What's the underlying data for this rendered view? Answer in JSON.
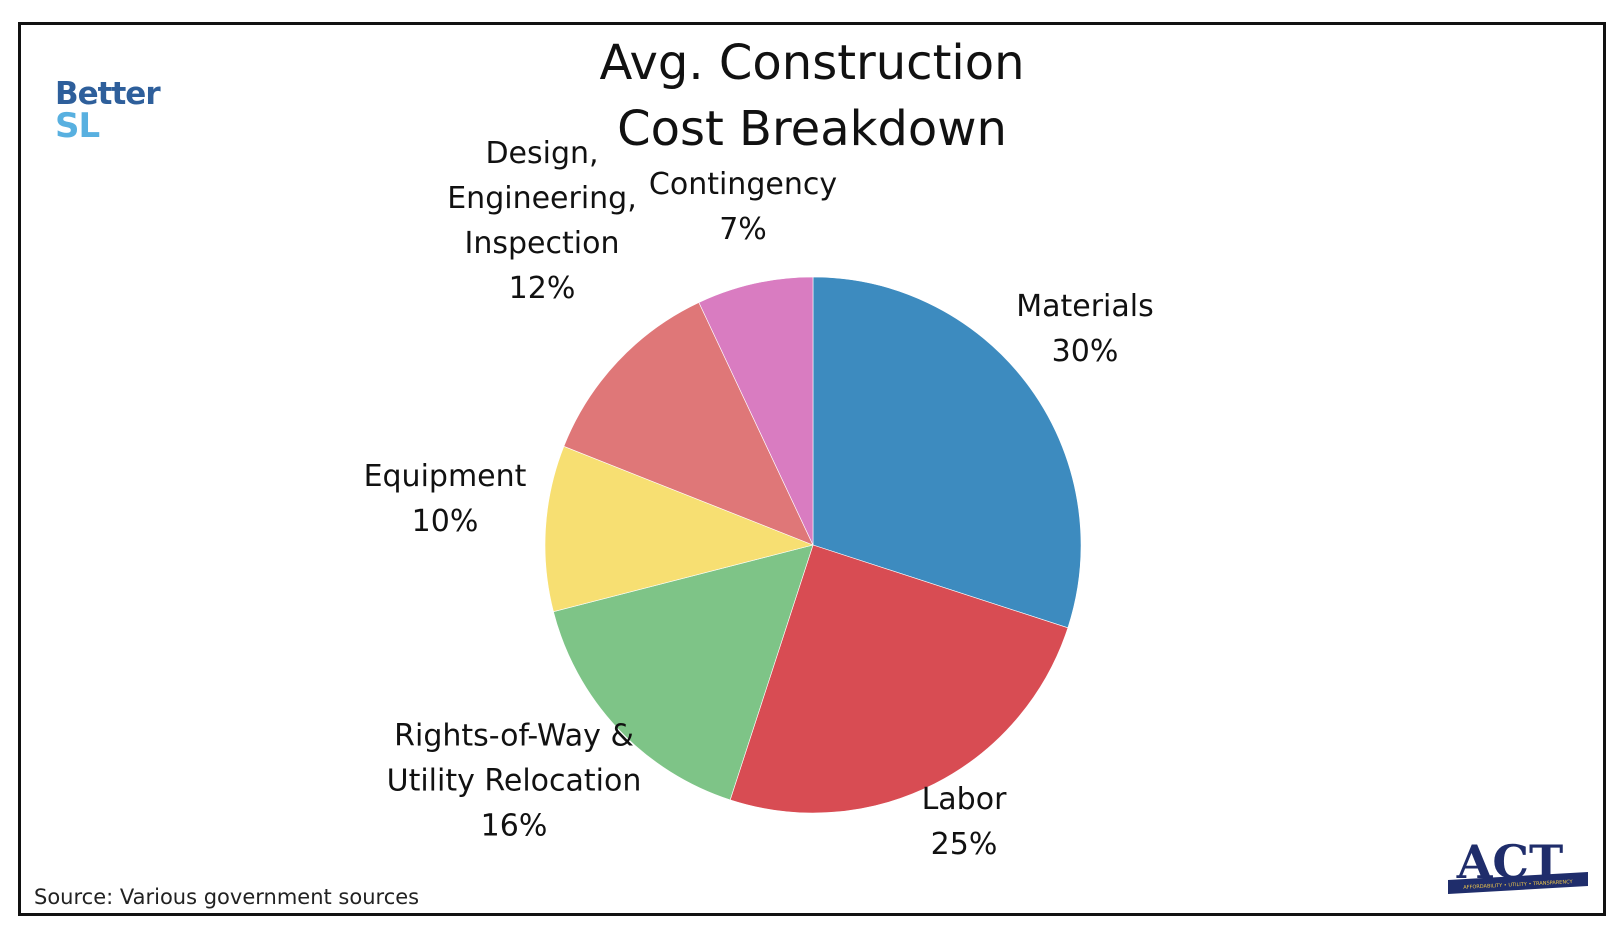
{
  "header": {
    "title_line1": "Avg. Construction",
    "title_line2": "Cost Breakdown"
  },
  "logos": {
    "left_line1": "Better",
    "left_line2": "SL",
    "right_text": "ACT",
    "right_banner": "AFFORDABILITY • UTILITY • TRANSPARENCY"
  },
  "footer": {
    "source": "Source: Various government sources"
  },
  "colors": {
    "materials": "#3d8bbf",
    "labor": "#d84c53",
    "rights_of_way": "#7ec487",
    "equipment": "#f7df72",
    "design": "#df7778",
    "contingency": "#d97cc1"
  },
  "chart_data": {
    "type": "pie",
    "title": "Avg. Construction Cost Breakdown",
    "start": "top",
    "direction": "clockwise",
    "slices": [
      {
        "label_lines": [
          "Materials"
        ],
        "value": 30,
        "display": "30%",
        "color": "#3d8bbf"
      },
      {
        "label_lines": [
          "Labor"
        ],
        "value": 25,
        "display": "25%",
        "color": "#d84c53"
      },
      {
        "label_lines": [
          "Rights-of-Way &",
          "Utility Relocation"
        ],
        "value": 16,
        "display": "16%",
        "color": "#7ec487"
      },
      {
        "label_lines": [
          "Equipment"
        ],
        "value": 10,
        "display": "10%",
        "color": "#f7df72"
      },
      {
        "label_lines": [
          "Design,",
          "Engineering,",
          "Inspection"
        ],
        "value": 12,
        "display": "12%",
        "color": "#df7778"
      },
      {
        "label_lines": [
          "Contingency"
        ],
        "value": 7,
        "display": "7%",
        "color": "#d97cc1"
      }
    ]
  }
}
